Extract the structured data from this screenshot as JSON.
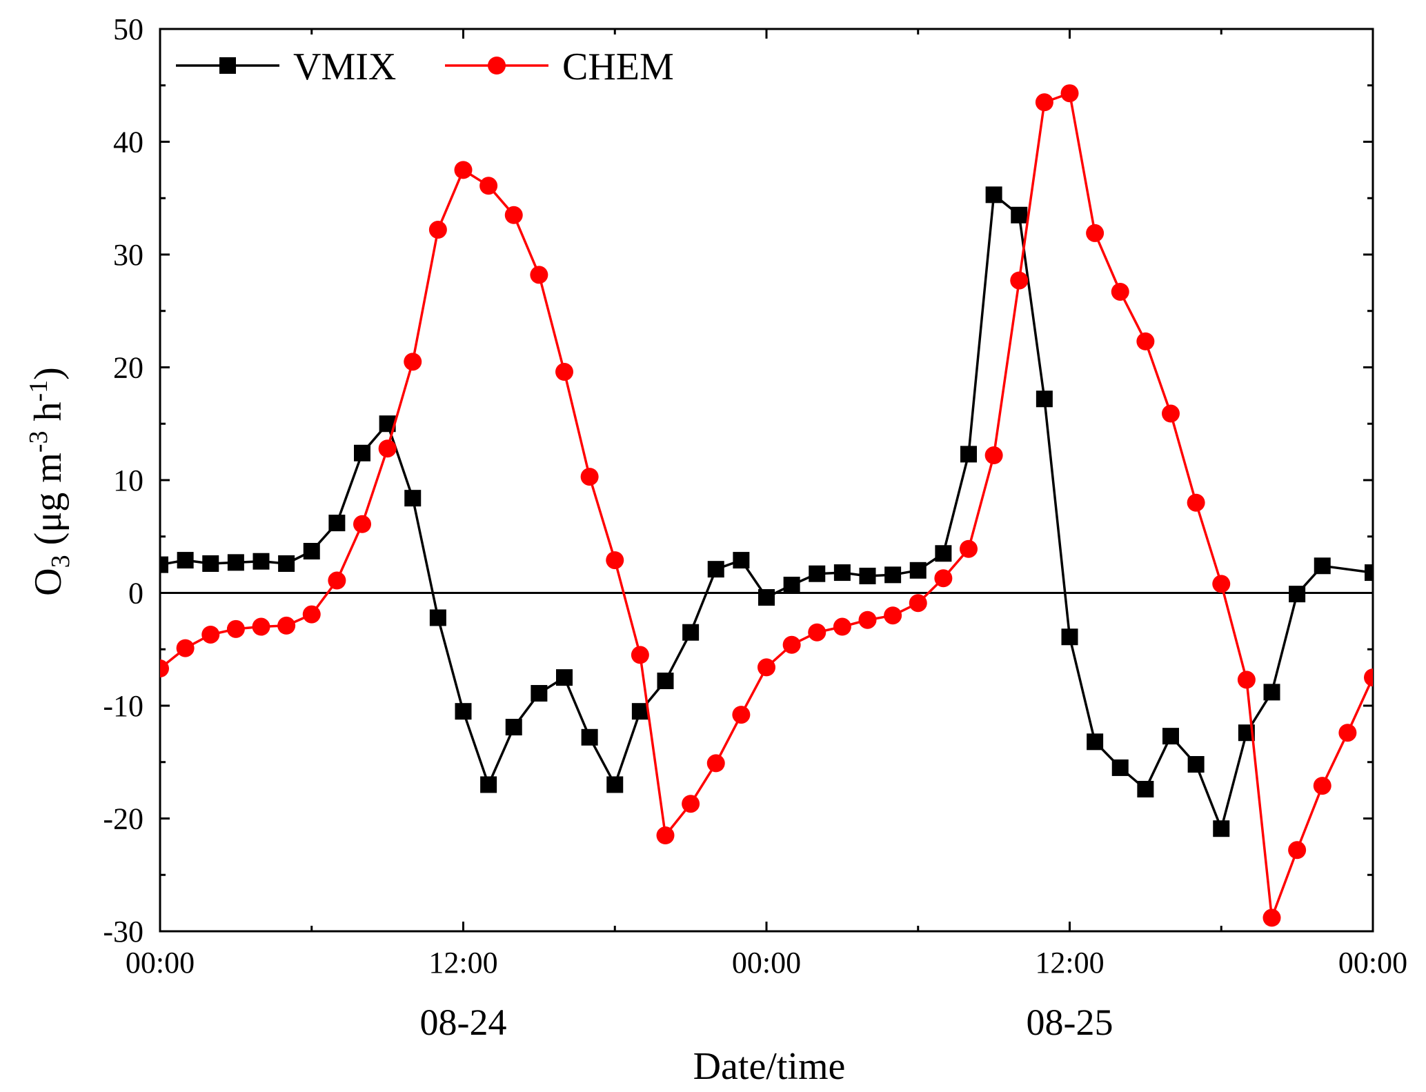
{
  "chart_data": {
    "type": "line",
    "title": "",
    "xlabel": "Date/time",
    "ylabel": {
      "prefix": "O",
      "sub": "3",
      "units_open": " (μg m",
      "exp1": "-3",
      "units_mid": " h",
      "exp2": "-1",
      "units_close": ")"
    },
    "x_unit": "hours from 08-24 00:00",
    "xlim": [
      0,
      48
    ],
    "ylim": [
      -30,
      50
    ],
    "yticks": [
      -30,
      -20,
      -10,
      0,
      10,
      20,
      30,
      40,
      50
    ],
    "ytick_labels": [
      "-30",
      "-20",
      "-10",
      "0",
      "10",
      "20",
      "30",
      "40",
      "50"
    ],
    "xticks": [
      0,
      12,
      24,
      36,
      48
    ],
    "xtick_labels": [
      "00:00",
      "12:00",
      "00:00",
      "12:00",
      "00:00"
    ],
    "date_labels": [
      {
        "x": 12,
        "label": "08-24"
      },
      {
        "x": 36,
        "label": "08-25"
      }
    ],
    "zero_line": true,
    "grid": false,
    "legend": "top-left",
    "x": [
      0,
      1,
      2,
      3,
      4,
      5,
      6,
      7,
      8,
      9,
      10,
      11,
      12,
      13,
      14,
      15,
      16,
      17,
      18,
      19,
      20,
      21,
      22,
      23,
      24,
      25,
      26,
      27,
      28,
      29,
      30,
      31,
      32,
      33,
      34,
      35,
      36,
      37,
      38,
      39,
      40,
      41,
      42,
      43,
      44,
      45,
      46,
      47,
      48
    ],
    "series": [
      {
        "name": "VMIX",
        "color": "#000000",
        "marker": "square",
        "values": [
          2.5,
          2.9,
          2.6,
          2.7,
          2.8,
          2.6,
          3.7,
          6.2,
          12.4,
          15.0,
          8.4,
          -2.2,
          -10.5,
          -17.0,
          -11.9,
          -8.9,
          -7.5,
          -12.8,
          -17.0,
          -10.5,
          -7.8,
          -3.5,
          2.1,
          2.9,
          -0.4,
          0.7,
          1.7,
          1.8,
          1.5,
          1.6,
          2.0,
          3.5,
          12.3,
          35.3,
          33.5,
          17.2,
          -3.9,
          -13.2,
          -15.5,
          -17.4,
          -12.7,
          -15.2,
          -20.9,
          -12.4,
          -8.8,
          -0.1,
          2.4,
          1.8
        ],
        "x": [
          0,
          1,
          2,
          3,
          4,
          5,
          6,
          7,
          8,
          9,
          10,
          11,
          12,
          13,
          14,
          15,
          16,
          17,
          18,
          19,
          20,
          21,
          22,
          23,
          24,
          25,
          26,
          27,
          28,
          29,
          30,
          31,
          32,
          33,
          34,
          35,
          36,
          37,
          38,
          39,
          40,
          41,
          42,
          43,
          44,
          45,
          46,
          48
        ]
      },
      {
        "name": "CHEM",
        "color": "#ff0000",
        "marker": "circle",
        "values": [
          -6.7,
          -4.9,
          -3.7,
          -3.2,
          -3.0,
          -2.9,
          -1.9,
          1.1,
          6.1,
          12.8,
          20.5,
          32.2,
          37.5,
          36.1,
          33.5,
          28.2,
          19.6,
          10.3,
          2.9,
          -5.5,
          -21.5,
          -18.7,
          -15.1,
          -10.8,
          -6.6,
          -4.6,
          -3.5,
          -3.0,
          -2.4,
          -2.0,
          -0.9,
          1.3,
          3.9,
          12.2,
          27.7,
          43.5,
          44.3,
          31.9,
          26.7,
          22.3,
          15.9,
          8.0,
          0.8,
          -7.7,
          -28.8,
          -22.8,
          -17.1,
          -12.4,
          -7.5
        ]
      }
    ]
  }
}
